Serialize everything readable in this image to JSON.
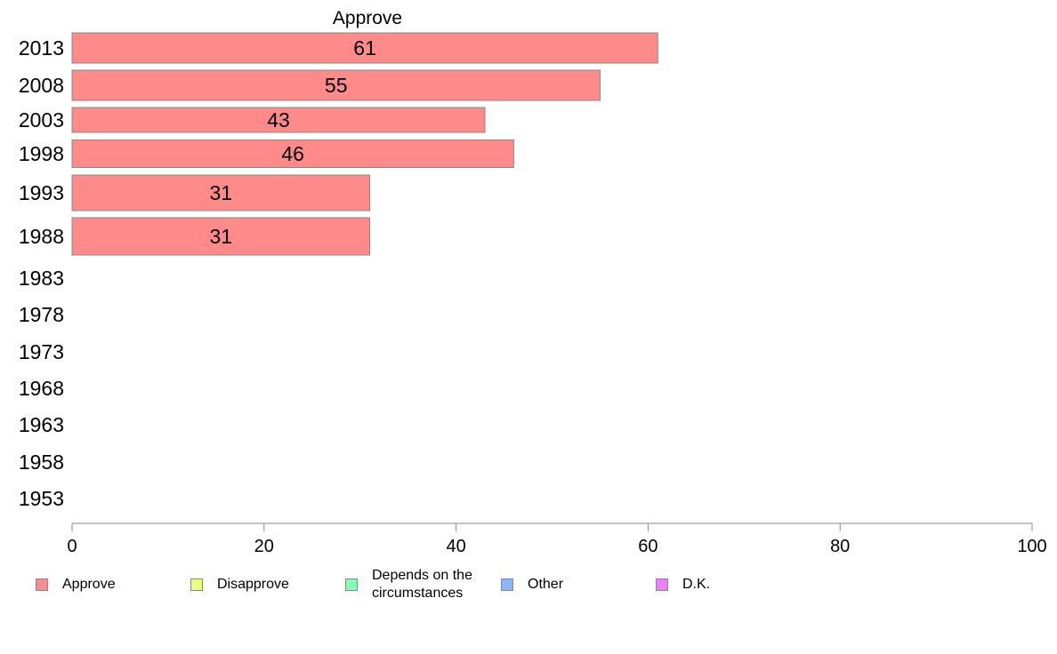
{
  "chart_data": {
    "type": "bar",
    "orientation": "horizontal",
    "title": "Approve",
    "categories": [
      "2013",
      "2008",
      "2003",
      "1998",
      "1993",
      "1988",
      "1983",
      "1978",
      "1973",
      "1968",
      "1963",
      "1958",
      "1953"
    ],
    "series": [
      {
        "name": "Approve",
        "values": [
          61,
          55,
          43,
          46,
          31,
          31,
          null,
          null,
          null,
          null,
          null,
          null,
          null
        ]
      }
    ],
    "data_labels": [
      "61",
      "55",
      "43",
      "46",
      "31",
      "31",
      "",
      "",
      "",
      "",
      "",
      "",
      ""
    ],
    "xlim": [
      0,
      100
    ],
    "x_ticks": [
      0,
      20,
      40,
      60,
      80,
      100
    ],
    "grid": false,
    "legend_position": "bottom",
    "bar_color": "#FF8A8A",
    "bar_stroke": "#888888"
  },
  "legend": {
    "items": [
      {
        "label": "Approve",
        "color": "#FF8A8A"
      },
      {
        "label": "Disapprove",
        "color": "#E8FF80"
      },
      {
        "label": "Depends on the\ncircumstances",
        "color": "#80FFB0"
      },
      {
        "label": "Other",
        "color": "#8AB4FF"
      },
      {
        "label": "D.K.",
        "color": "#EE80FF"
      }
    ]
  }
}
